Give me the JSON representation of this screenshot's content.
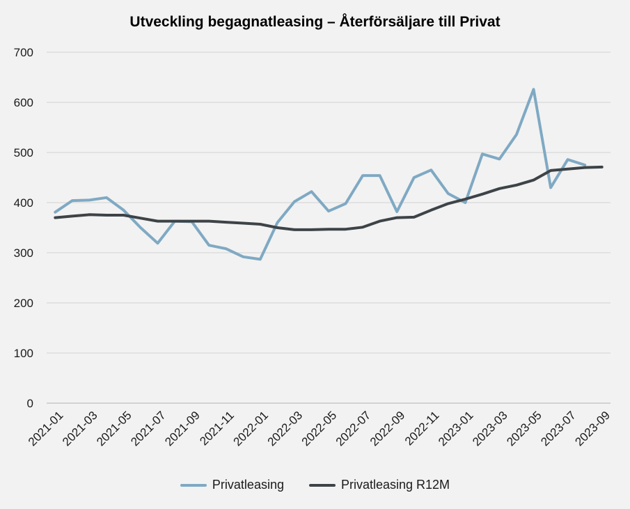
{
  "chart_data": {
    "type": "line",
    "title": "Utveckling begagnatleasing – Återförsäljare till Privat",
    "xlabel": "",
    "ylabel": "",
    "ylim": [
      0,
      700
    ],
    "yticks": [
      "0",
      "100",
      "200",
      "300",
      "400",
      "500",
      "600",
      "700"
    ],
    "grid": true,
    "legend_position": "bottom",
    "x": [
      "2021-01",
      "2021-02",
      "2021-03",
      "2021-04",
      "2021-05",
      "2021-06",
      "2021-07",
      "2021-08",
      "2021-09",
      "2021-10",
      "2021-11",
      "2021-12",
      "2022-01",
      "2022-02",
      "2022-03",
      "2022-04",
      "2022-05",
      "2022-06",
      "2022-07",
      "2022-08",
      "2022-09",
      "2022-10",
      "2022-11",
      "2022-12",
      "2023-01",
      "2023-02",
      "2023-03",
      "2023-04",
      "2023-05",
      "2023-06",
      "2023-07",
      "2023-08",
      "2023-09"
    ],
    "xtick_labels": [
      "2021-01",
      "2021-03",
      "2021-05",
      "2021-07",
      "2021-09",
      "2021-11",
      "2022-01",
      "2022-03",
      "2022-05",
      "2022-07",
      "2022-09",
      "2022-11",
      "2023-01",
      "2023-03",
      "2023-05",
      "2023-07",
      "2023-09"
    ],
    "series": [
      {
        "name": "Privatleasing",
        "color": "#7fa9c3",
        "values": [
          381,
          404,
          405,
          410,
          385,
          350,
          319,
          363,
          362,
          315,
          308,
          292,
          287,
          360,
          402,
          422,
          383,
          398,
          454,
          454,
          382,
          450,
          465,
          418,
          400,
          497,
          487,
          536,
          626,
          430,
          486,
          475,
          null
        ]
      },
      {
        "name": "Privatleasing R12M",
        "color": "#3d4347",
        "values": [
          370,
          373,
          376,
          375,
          375,
          369,
          363,
          363,
          363,
          363,
          361,
          359,
          357,
          350,
          346,
          346,
          347,
          347,
          351,
          363,
          370,
          371,
          385,
          398,
          407,
          417,
          428,
          435,
          445,
          464,
          467,
          470,
          471
        ]
      }
    ]
  }
}
